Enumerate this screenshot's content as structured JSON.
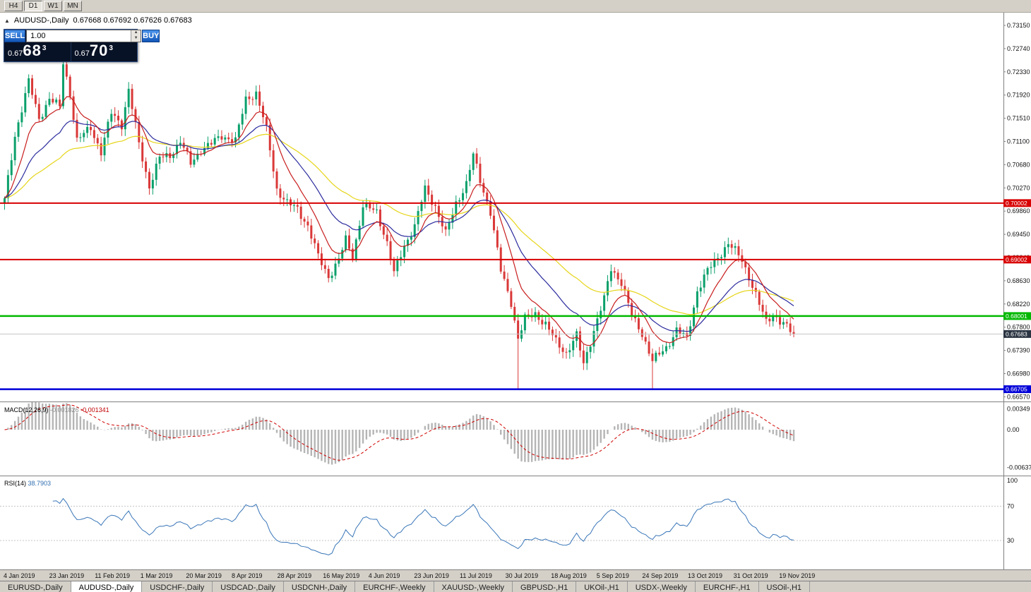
{
  "toolbar": {
    "buttons": [
      {
        "label": "H4",
        "active": false
      },
      {
        "label": "D1",
        "active": true
      },
      {
        "label": "W1",
        "active": false
      },
      {
        "label": "MN",
        "active": false
      }
    ]
  },
  "chart": {
    "symbol": "AUDUSD-,Daily",
    "ohlc": "0.67668 0.67692 0.67626 0.67683"
  },
  "trade": {
    "sell_label": "SELL",
    "buy_label": "BUY",
    "volume": "1.00",
    "sell_price": {
      "prefix": "0.67",
      "big": "68",
      "pip": "3"
    },
    "buy_price": {
      "prefix": "0.67",
      "big": "70",
      "pip": "3"
    }
  },
  "chart_data": {
    "type": "candlestick",
    "symbol": "AUDUSD-,Daily",
    "bars": 230,
    "candle_colors": {
      "up": "#0aa06b",
      "down": "#da3838"
    },
    "price_axis_labels": [
      "0.73150",
      "0.72740",
      "0.72330",
      "0.71920",
      "0.71510",
      "0.71100",
      "0.70680",
      "0.70270",
      "0.69860",
      "0.69450",
      "0.69040",
      "0.68630",
      "0.68220",
      "0.67800",
      "0.67390",
      "0.66980",
      "0.66570"
    ],
    "anchors": [
      [
        0,
        0.7005
      ],
      [
        3,
        0.712
      ],
      [
        7,
        0.7215
      ],
      [
        10,
        0.715
      ],
      [
        13,
        0.7185
      ],
      [
        16,
        0.717
      ],
      [
        17,
        0.725
      ],
      [
        19,
        0.7195
      ],
      [
        21,
        0.711
      ],
      [
        25,
        0.7135
      ],
      [
        28,
        0.709
      ],
      [
        31,
        0.716
      ],
      [
        34,
        0.714
      ],
      [
        36,
        0.72
      ],
      [
        39,
        0.7105
      ],
      [
        42,
        0.703
      ],
      [
        45,
        0.708
      ],
      [
        48,
        0.7085
      ],
      [
        51,
        0.711
      ],
      [
        54,
        0.707
      ],
      [
        57,
        0.7095
      ],
      [
        60,
        0.7105
      ],
      [
        63,
        0.712
      ],
      [
        67,
        0.711
      ],
      [
        70,
        0.7185
      ],
      [
        73,
        0.7195
      ],
      [
        76,
        0.713
      ],
      [
        79,
        0.7025
      ],
      [
        82,
        0.7
      ],
      [
        85,
        0.699
      ],
      [
        88,
        0.696
      ],
      [
        91,
        0.6905
      ],
      [
        94,
        0.687
      ],
      [
        97,
        0.69
      ],
      [
        99,
        0.6935
      ],
      [
        101,
        0.6905
      ],
      [
        104,
        0.6995
      ],
      [
        108,
        0.6985
      ],
      [
        111,
        0.693
      ],
      [
        113,
        0.6875
      ],
      [
        116,
        0.6925
      ],
      [
        119,
        0.696
      ],
      [
        122,
        0.7025
      ],
      [
        125,
        0.6995
      ],
      [
        128,
        0.6945
      ],
      [
        131,
        0.7
      ],
      [
        134,
        0.7035
      ],
      [
        136,
        0.7085
      ],
      [
        138,
        0.704
      ],
      [
        141,
        0.6985
      ],
      [
        144,
        0.688
      ],
      [
        147,
        0.6825
      ],
      [
        149,
        0.676
      ],
      [
        151,
        0.6795
      ],
      [
        154,
        0.6805
      ],
      [
        157,
        0.6785
      ],
      [
        160,
        0.6755
      ],
      [
        163,
        0.6735
      ],
      [
        166,
        0.6765
      ],
      [
        168,
        0.6715
      ],
      [
        171,
        0.6775
      ],
      [
        174,
        0.683
      ],
      [
        176,
        0.6885
      ],
      [
        179,
        0.686
      ],
      [
        182,
        0.68
      ],
      [
        185,
        0.677
      ],
      [
        188,
        0.672
      ],
      [
        192,
        0.6745
      ],
      [
        195,
        0.6775
      ],
      [
        198,
        0.676
      ],
      [
        201,
        0.6845
      ],
      [
        204,
        0.688
      ],
      [
        207,
        0.6905
      ],
      [
        210,
        0.6928
      ],
      [
        212,
        0.6915
      ],
      [
        214,
        0.69
      ],
      [
        216,
        0.687
      ],
      [
        219,
        0.682
      ],
      [
        221,
        0.679
      ],
      [
        223,
        0.6805
      ],
      [
        225,
        0.679
      ],
      [
        227,
        0.678
      ],
      [
        229,
        0.67683
      ]
    ],
    "spike_lows": [
      [
        149,
        0.6671
      ],
      [
        188,
        0.6672
      ]
    ],
    "moving_averages": [
      {
        "period": 52,
        "color": "#e6d519"
      },
      {
        "period": 24,
        "color": "#2b2b9e"
      },
      {
        "period": 10,
        "color": "#c81e1e"
      }
    ],
    "hlines": [
      {
        "price": 0.70002,
        "label": "0.70002",
        "color": "#d80000",
        "width": 2
      },
      {
        "price": 0.69002,
        "label": "0.69002",
        "color": "#d80000",
        "width": 2
      },
      {
        "price": 0.68001,
        "label": "0.68001",
        "color": "#00b800",
        "width": 2.5
      },
      {
        "price": 0.66705,
        "label": "0.66705",
        "color": "#0000d8",
        "width": 2.5
      }
    ],
    "current_price": {
      "text": "0.67683",
      "value": 0.67683,
      "badge_bg": "#2a3442"
    },
    "macd": {
      "name": "MACD(12,26,9)",
      "value1": "-0.001826",
      "value2": "-0.001341",
      "hist_color": "#b5b5b5",
      "signal_color": "#d00000",
      "axis": [
        {
          "text": "0.00349",
          "v": 0.00349
        },
        {
          "text": "0.00",
          "v": 0
        },
        {
          "text": "-0.00637",
          "v": -0.00637
        }
      ]
    },
    "rsi": {
      "name": "RSI(14)",
      "value": "38.7903",
      "color": "#3976b8",
      "axis": [
        {
          "text": "100",
          "v": 100
        },
        {
          "text": "70",
          "v": 70
        },
        {
          "text": "30",
          "v": 30
        }
      ],
      "levels": [
        70,
        30
      ]
    },
    "dates": [
      "4 Jan 2019",
      "23 Jan 2019",
      "11 Feb 2019",
      "1 Mar 2019",
      "20 Mar 2019",
      "8 Apr 2019",
      "28 Apr 2019",
      "16 May 2019",
      "4 Jun 2019",
      "23 Jun 2019",
      "11 Jul 2019",
      "30 Jul 2019",
      "18 Aug 2019",
      "5 Sep 2019",
      "24 Sep 2019",
      "13 Oct 2019",
      "31 Oct 2019",
      "19 Nov 2019"
    ]
  },
  "tabs": {
    "items": [
      {
        "label": "EURUSD-,Daily",
        "active": false
      },
      {
        "label": "AUDUSD-,Daily",
        "active": true
      },
      {
        "label": "USDCHF-,Daily",
        "active": false
      },
      {
        "label": "USDCAD-,Daily",
        "active": false
      },
      {
        "label": "USDCNH-,Daily",
        "active": false
      },
      {
        "label": "EURCHF-,Weekly",
        "active": false
      },
      {
        "label": "XAUUSD-,Weekly",
        "active": false
      },
      {
        "label": "GBPUSD-,H1",
        "active": false
      },
      {
        "label": "UKOil-,H1",
        "active": false
      },
      {
        "label": "USDX-,Weekly",
        "active": false
      },
      {
        "label": "EURCHF-,H1",
        "active": false
      },
      {
        "label": "USOil-,H1",
        "active": false
      }
    ]
  }
}
